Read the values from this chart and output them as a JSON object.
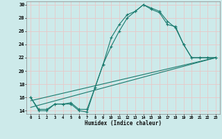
{
  "xlabel": "Humidex (Indice chaleur)",
  "ylabel": "",
  "bg_color": "#cdeaea",
  "grid_color": "#e8c8c8",
  "line_color": "#1a7a6e",
  "xlim": [
    -0.5,
    23.5
  ],
  "ylim": [
    13.5,
    30.5
  ],
  "yticks": [
    14,
    16,
    18,
    20,
    22,
    24,
    26,
    28,
    30
  ],
  "xticks": [
    0,
    1,
    2,
    3,
    4,
    5,
    6,
    7,
    8,
    9,
    10,
    11,
    12,
    13,
    14,
    15,
    16,
    17,
    18,
    19,
    20,
    21,
    22,
    23
  ],
  "line1_x": [
    0,
    1,
    2,
    3,
    4,
    5,
    6,
    7,
    8,
    9,
    10,
    11,
    12,
    13,
    14,
    15,
    16,
    17,
    18,
    19,
    20,
    21,
    22,
    23
  ],
  "line1_y": [
    16,
    14,
    14,
    15,
    15,
    15,
    14,
    13.8,
    17.5,
    21,
    25,
    27,
    28.5,
    29,
    30,
    29.5,
    29,
    27.5,
    26.5,
    24,
    22,
    22,
    22,
    22
  ],
  "line2_x": [
    0,
    1,
    2,
    3,
    4,
    5,
    6,
    7,
    8,
    9,
    10,
    11,
    12,
    13,
    14,
    15,
    16,
    17,
    18,
    19,
    20,
    21,
    22,
    23
  ],
  "line2_y": [
    16,
    14.2,
    14.2,
    15,
    15,
    15.2,
    14.2,
    14.2,
    17.5,
    21,
    23.7,
    26,
    28,
    29,
    30,
    29.3,
    28.8,
    27,
    26.7,
    24,
    22,
    22,
    22,
    22
  ],
  "line3_x": [
    0,
    23
  ],
  "line3_y": [
    15.5,
    22.0
  ],
  "line4_x": [
    0,
    23
  ],
  "line4_y": [
    14.5,
    22.0
  ]
}
